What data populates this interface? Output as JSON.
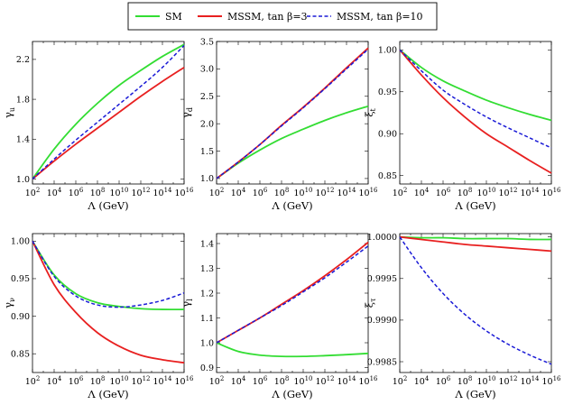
{
  "legend": {
    "entries": [
      {
        "label": "SM",
        "color": "#33dd33",
        "dash": false
      },
      {
        "label": "MSSM, tan β=3",
        "color": "#e82020",
        "dash": false
      },
      {
        "label": "MSSM, tan β=10",
        "color": "#1a1ad6",
        "dash": true
      }
    ]
  },
  "x_tick_base": "10",
  "chart_data": [
    {
      "type": "line",
      "xlabel": "Λ (GeV)",
      "ylabel": "γ",
      "ylabel_sub": "u",
      "xscale": "log",
      "x_exponents": [
        2,
        4,
        6,
        8,
        10,
        12,
        14,
        16
      ],
      "xlim_exp": [
        2,
        16
      ],
      "ylim": [
        0.95,
        2.38
      ],
      "yticks": [
        "1.0",
        "1.4",
        "1.8",
        "2.2"
      ],
      "x_exp": [
        2,
        4,
        6,
        8,
        10,
        12,
        14,
        16
      ],
      "series": [
        {
          "name": "SM",
          "values": [
            1.0,
            1.3,
            1.55,
            1.76,
            1.94,
            2.09,
            2.23,
            2.35
          ]
        },
        {
          "name": "MSSM, tan β=3",
          "values": [
            1.0,
            1.18,
            1.35,
            1.51,
            1.67,
            1.83,
            1.98,
            2.12
          ]
        },
        {
          "name": "MSSM, tan β=10",
          "values": [
            1.0,
            1.2,
            1.39,
            1.57,
            1.75,
            1.93,
            2.12,
            2.34
          ]
        }
      ]
    },
    {
      "type": "line",
      "xlabel": "Λ (GeV)",
      "ylabel": "γ",
      "ylabel_sub": "d",
      "xscale": "log",
      "x_exponents": [
        2,
        4,
        6,
        8,
        10,
        12,
        14,
        16
      ],
      "xlim_exp": [
        2,
        16
      ],
      "ylim": [
        0.9,
        3.5
      ],
      "yticks": [
        "1.0",
        "1.5",
        "2.0",
        "2.5",
        "3.0",
        "3.5"
      ],
      "x_exp": [
        2,
        4,
        6,
        8,
        10,
        12,
        14,
        16
      ],
      "series": [
        {
          "name": "SM",
          "values": [
            1.0,
            1.28,
            1.52,
            1.73,
            1.9,
            2.06,
            2.2,
            2.32
          ]
        },
        {
          "name": "MSSM, tan β=3",
          "values": [
            1.0,
            1.3,
            1.62,
            1.97,
            2.3,
            2.65,
            3.02,
            3.38
          ]
        },
        {
          "name": "MSSM, tan β=10",
          "values": [
            1.0,
            1.3,
            1.62,
            1.96,
            2.29,
            2.64,
            3.0,
            3.36
          ]
        }
      ]
    },
    {
      "type": "line",
      "xlabel": "Λ (GeV)",
      "ylabel": "ξ",
      "ylabel_sub": "t",
      "xscale": "log",
      "x_exponents": [
        2,
        4,
        6,
        8,
        10,
        12,
        14,
        16
      ],
      "xlim_exp": [
        2,
        16
      ],
      "ylim": [
        0.84,
        1.01
      ],
      "yticks": [
        "0.85",
        "0.90",
        "0.95",
        "1.00"
      ],
      "x_exp": [
        2,
        4,
        6,
        8,
        10,
        12,
        14,
        16
      ],
      "series": [
        {
          "name": "SM",
          "values": [
            1.0,
            0.979,
            0.963,
            0.951,
            0.94,
            0.931,
            0.923,
            0.916
          ]
        },
        {
          "name": "MSSM, tan β=3",
          "values": [
            1.0,
            0.97,
            0.943,
            0.92,
            0.9,
            0.884,
            0.868,
            0.853
          ]
        },
        {
          "name": "MSSM, tan β=10",
          "values": [
            1.0,
            0.975,
            0.952,
            0.935,
            0.92,
            0.907,
            0.895,
            0.883
          ]
        }
      ]
    },
    {
      "type": "line",
      "xlabel": "Λ (GeV)",
      "ylabel": "γ",
      "ylabel_sub": "ν",
      "xscale": "log",
      "x_exponents": [
        2,
        4,
        6,
        8,
        10,
        12,
        14,
        16
      ],
      "xlim_exp": [
        2,
        16
      ],
      "ylim": [
        0.825,
        1.01
      ],
      "yticks": [
        "0.85",
        "0.90",
        "0.95",
        "1.00"
      ],
      "x_exp": [
        2,
        4,
        6,
        8,
        10,
        12,
        14,
        16
      ],
      "series": [
        {
          "name": "SM",
          "values": [
            1.0,
            0.955,
            0.93,
            0.918,
            0.913,
            0.91,
            0.909,
            0.909
          ]
        },
        {
          "name": "MSSM, tan β=3",
          "values": [
            1.0,
            0.942,
            0.905,
            0.878,
            0.86,
            0.848,
            0.842,
            0.838
          ]
        },
        {
          "name": "MSSM, tan β=10",
          "values": [
            1.0,
            0.953,
            0.927,
            0.915,
            0.912,
            0.915,
            0.921,
            0.931
          ]
        }
      ]
    },
    {
      "type": "line",
      "xlabel": "Λ (GeV)",
      "ylabel": "γ",
      "ylabel_sub": "l",
      "xscale": "log",
      "x_exponents": [
        2,
        4,
        6,
        8,
        10,
        12,
        14,
        16
      ],
      "xlim_exp": [
        2,
        16
      ],
      "ylim": [
        0.88,
        1.44
      ],
      "yticks": [
        "0.9",
        "1.0",
        "1.1",
        "1.2",
        "1.3",
        "1.4"
      ],
      "x_exp": [
        2,
        4,
        6,
        8,
        10,
        12,
        14,
        16
      ],
      "series": [
        {
          "name": "SM",
          "values": [
            1.0,
            0.965,
            0.95,
            0.945,
            0.945,
            0.948,
            0.952,
            0.957
          ]
        },
        {
          "name": "MSSM, tan β=3",
          "values": [
            1.0,
            1.05,
            1.1,
            1.155,
            1.21,
            1.27,
            1.335,
            1.405
          ]
        },
        {
          "name": "MSSM, tan β=10",
          "values": [
            1.0,
            1.05,
            1.1,
            1.15,
            1.205,
            1.262,
            1.325,
            1.39
          ]
        }
      ]
    },
    {
      "type": "line",
      "xlabel": "Λ (GeV)",
      "ylabel": "ξ",
      "ylabel_sub": "τ",
      "xscale": "log",
      "x_exponents": [
        2,
        4,
        6,
        8,
        10,
        12,
        14,
        16
      ],
      "xlim_exp": [
        2,
        16
      ],
      "ylim": [
        0.99837,
        1.00004
      ],
      "yticks": [
        "0.9985",
        "0.9990",
        "0.9995",
        "1.0000"
      ],
      "x_exp": [
        2,
        4,
        6,
        8,
        10,
        12,
        14,
        16
      ],
      "series": [
        {
          "name": "SM",
          "values": [
            1.0,
            0.99999,
            0.99999,
            0.99998,
            0.99998,
            0.99998,
            0.99997,
            0.99997
          ]
        },
        {
          "name": "MSSM, tan β=3",
          "values": [
            1.0,
            0.99997,
            0.99994,
            0.99991,
            0.99989,
            0.99987,
            0.99985,
            0.99983
          ]
        },
        {
          "name": "MSSM, tan β=10",
          "values": [
            1.0,
            0.99963,
            0.99932,
            0.99907,
            0.99887,
            0.99871,
            0.99858,
            0.99847
          ]
        }
      ]
    }
  ]
}
